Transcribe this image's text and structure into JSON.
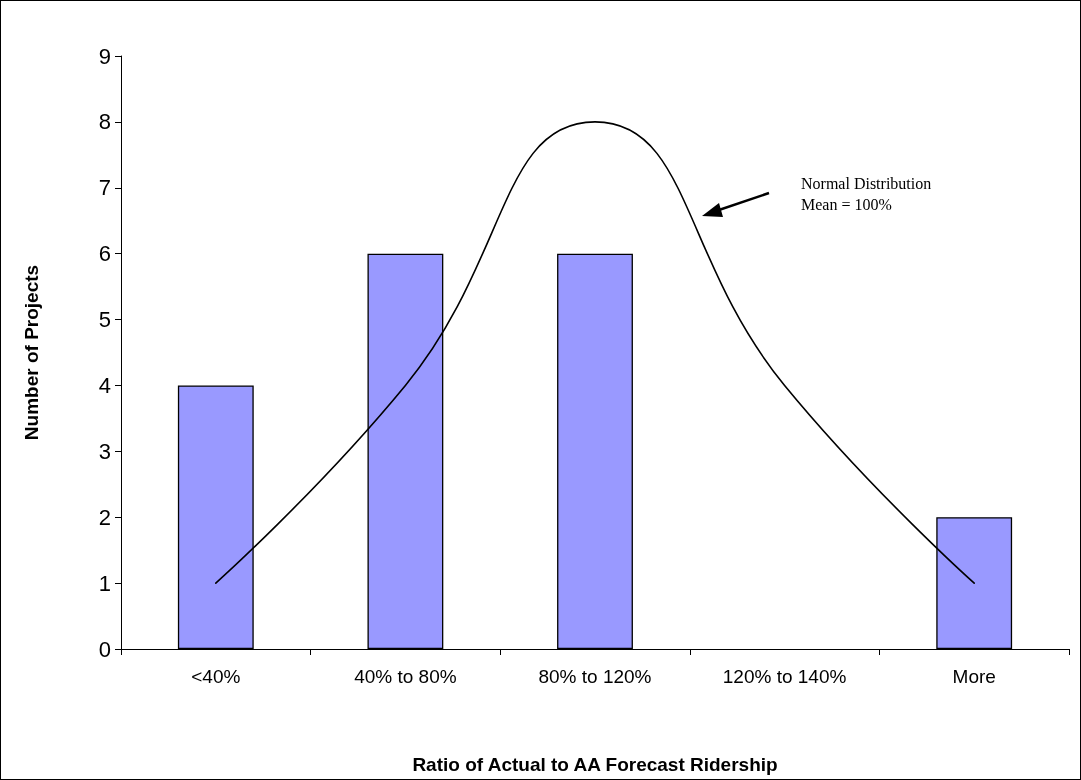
{
  "chart_data": {
    "type": "bar",
    "xlabel": "Ratio of Actual to AA Forecast Ridership",
    "ylabel": "Number of Projects",
    "categories": [
      "<40%",
      "40% to 80%",
      "80% to 120%",
      "120% to 140%",
      "More"
    ],
    "series": [
      {
        "color": "#9999ff",
        "values": [
          4,
          6,
          6,
          0,
          2
        ]
      },
      {
        "type": "line",
        "color": "#000000",
        "values": [
          1,
          4,
          8,
          4,
          1
        ]
      }
    ],
    "annotations": [
      "Normal Distribution\nMean = 100%"
    ],
    "ylim": [
      0,
      9
    ],
    "yticks": [
      0,
      1,
      2,
      3,
      4,
      5,
      6,
      7,
      8,
      9
    ],
    "grid": false,
    "marker": "none",
    "line_style": "solid"
  }
}
